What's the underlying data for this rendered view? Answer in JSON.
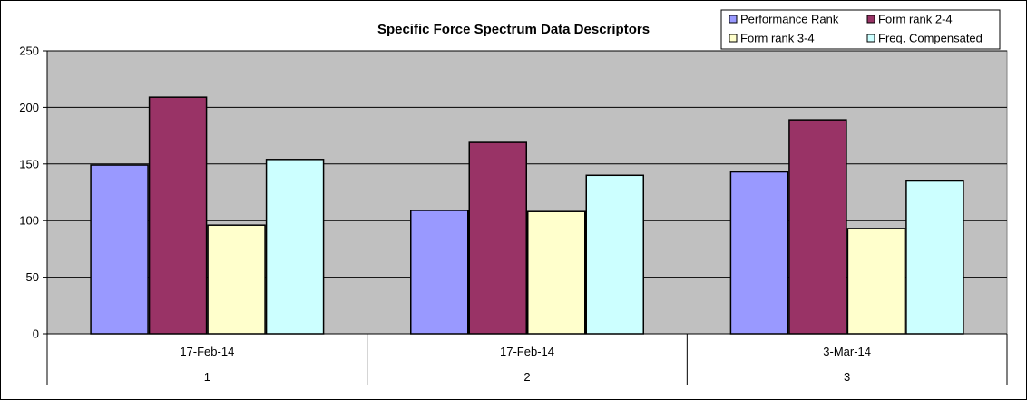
{
  "chart_data": {
    "type": "bar",
    "title": "Specific Force Spectrum Data Descriptors",
    "xlabel": "",
    "ylabel": "",
    "ylim": [
      0,
      250
    ],
    "yticks": [
      0,
      50,
      100,
      150,
      200,
      250
    ],
    "grid": "horizontal",
    "legend_position": "top-right",
    "categories": [
      {
        "date": "17-Feb-14",
        "index": "1"
      },
      {
        "date": "17-Feb-14",
        "index": "2"
      },
      {
        "date": "3-Mar-14",
        "index": "3"
      }
    ],
    "series": [
      {
        "name": "Performance Rank",
        "color": "#9999ff",
        "values": [
          149,
          109,
          143
        ]
      },
      {
        "name": "Form rank 2-4",
        "color": "#993366",
        "values": [
          209,
          169,
          189
        ]
      },
      {
        "name": "Form rank 3-4",
        "color": "#ffffcc",
        "values": [
          96,
          108,
          93
        ]
      },
      {
        "name": "Freq. Compensated",
        "color": "#ccffff",
        "values": [
          154,
          140,
          135
        ]
      }
    ],
    "colors": {
      "plot_background": "#c0c0c0",
      "border": "#000000",
      "gridline": "#000000"
    }
  }
}
